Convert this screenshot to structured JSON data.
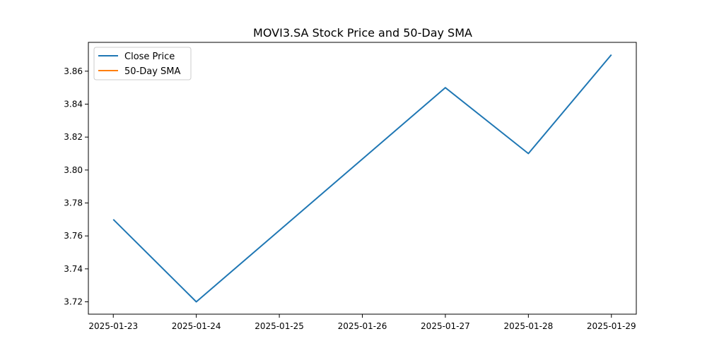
{
  "chart_data": {
    "type": "line",
    "title": "MOVI3.SA Stock Price and 50-Day SMA",
    "xlabel": "",
    "ylabel": "",
    "x": [
      "2025-01-23",
      "2025-01-24",
      "2025-01-25",
      "2025-01-26",
      "2025-01-27",
      "2025-01-28",
      "2025-01-29"
    ],
    "series": [
      {
        "name": "Close Price",
        "color": "#1f77b4",
        "points": [
          {
            "x": "2025-01-23",
            "y": 3.77
          },
          {
            "x": "2025-01-24",
            "y": 3.72
          },
          {
            "x": "2025-01-27",
            "y": 3.85
          },
          {
            "x": "2025-01-28",
            "y": 3.81
          },
          {
            "x": "2025-01-29",
            "y": 3.87
          }
        ]
      },
      {
        "name": "50-Day SMA",
        "color": "#ff7f0e",
        "points": []
      }
    ],
    "yticks": [
      "3.72",
      "3.74",
      "3.76",
      "3.78",
      "3.80",
      "3.82",
      "3.84",
      "3.86"
    ],
    "ylim": [
      3.7125,
      3.8775
    ],
    "xlim": [
      "2025-01-22 16:48",
      "2025-01-29 07:12"
    ],
    "grid": false,
    "legend_position": "upper left"
  }
}
